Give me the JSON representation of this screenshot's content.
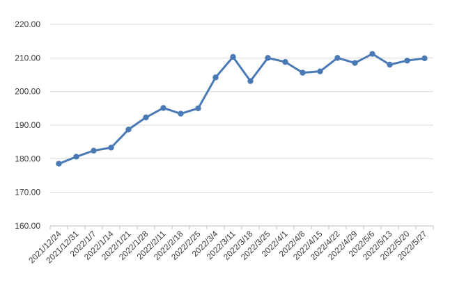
{
  "chart_data": {
    "type": "line",
    "title": "",
    "xlabel": "",
    "ylabel": "",
    "ylim": [
      160,
      220
    ],
    "y_ticks": [
      "160.00",
      "170.00",
      "180.00",
      "190.00",
      "200.00",
      "210.00",
      "220.00"
    ],
    "categories": [
      "2021/12/24",
      "2021/12/31",
      "2022/1/7",
      "2022/1/14",
      "2022/1/21",
      "2022/1/28",
      "2022/2/11",
      "2022/2/18",
      "2022/2/25",
      "2022/3/4",
      "2022/3/11",
      "2022/3/18",
      "2022/3/25",
      "2022/4/1",
      "2022/4/8",
      "2022/4/15",
      "2022/4/22",
      "2022/4/29",
      "2022/5/6",
      "2022/5/13",
      "2022/5/20",
      "2022/5/27"
    ],
    "series": [
      {
        "values": [
          178.5,
          180.6,
          182.4,
          183.3,
          188.7,
          192.3,
          195.1,
          193.4,
          195.0,
          204.2,
          210.3,
          203.1,
          210.0,
          208.8,
          205.6,
          206.0,
          210.0,
          208.5,
          211.2,
          208.0,
          209.2,
          209.9
        ]
      }
    ],
    "grid": true,
    "legend": "none",
    "colors": {
      "line": "#4a7ab5",
      "marker": "#4a7ab5",
      "grid": "#d9d9d9"
    }
  }
}
